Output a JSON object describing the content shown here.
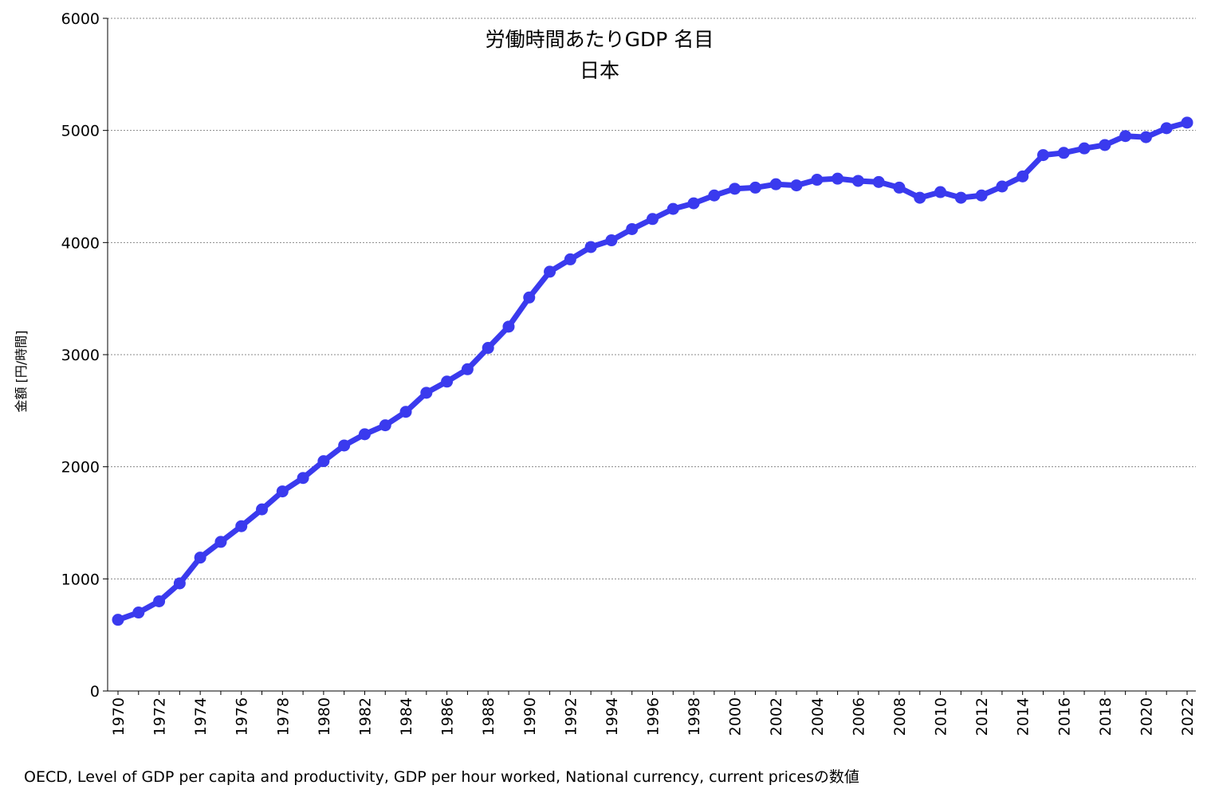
{
  "chart_data": {
    "type": "line",
    "title": "労働時間あたりGDP 名目",
    "subtitle": "日本",
    "ylabel": "金額 [円/時間]",
    "xlabel": "",
    "ylim": [
      0,
      6000
    ],
    "yticks": [
      "0",
      "1000",
      "2000",
      "3000",
      "4000",
      "5000",
      "6000"
    ],
    "xtick_labels": [
      "1970",
      "1972",
      "1974",
      "1976",
      "1978",
      "1980",
      "1982",
      "1984",
      "1986",
      "1988",
      "1990",
      "1992",
      "1994",
      "1996",
      "1998",
      "2000",
      "2002",
      "2004",
      "2006",
      "2008",
      "2010",
      "2012",
      "2014",
      "2016",
      "2018",
      "2020",
      "2022"
    ],
    "grid": true,
    "color": "#3a3aee",
    "x": [
      1970,
      1971,
      1972,
      1973,
      1974,
      1975,
      1976,
      1977,
      1978,
      1979,
      1980,
      1981,
      1982,
      1983,
      1984,
      1985,
      1986,
      1987,
      1988,
      1989,
      1990,
      1991,
      1992,
      1993,
      1994,
      1995,
      1996,
      1997,
      1998,
      1999,
      2000,
      2001,
      2002,
      2003,
      2004,
      2005,
      2006,
      2007,
      2008,
      2009,
      2010,
      2011,
      2012,
      2013,
      2014,
      2015,
      2016,
      2017,
      2018,
      2019,
      2020,
      2021,
      2022
    ],
    "series": [
      {
        "values": [
          635,
          700,
          800,
          960,
          1190,
          1330,
          1470,
          1620,
          1780,
          1900,
          2050,
          2190,
          2290,
          2370,
          2490,
          2660,
          2760,
          2870,
          3060,
          3250,
          3510,
          3740,
          3850,
          3960,
          4020,
          4120,
          4210,
          4300,
          4350,
          4420,
          4480,
          4490,
          4520,
          4510,
          4560,
          4570,
          4550,
          4540,
          4490,
          4400,
          4450,
          4400,
          4420,
          4500,
          4590,
          4780,
          4800,
          4840,
          4870,
          4950,
          4940,
          5020,
          5070
        ]
      }
    ]
  },
  "footnote": "OECD, Level of GDP per capita and productivity, GDP per hour worked, National currency, current pricesの数値"
}
